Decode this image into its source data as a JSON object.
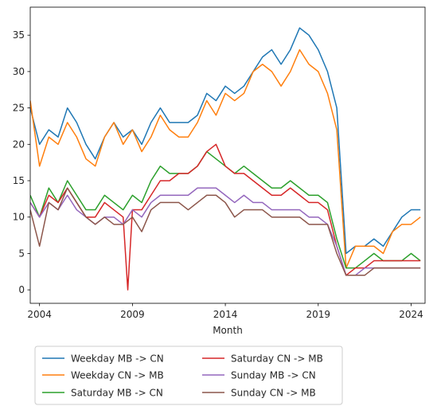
{
  "chart_data": {
    "type": "line",
    "title": "",
    "xlabel": "Month",
    "ylabel": "",
    "xlim": [
      2003.5,
      2024.75
    ],
    "ylim": [
      -1.85,
      38.85
    ],
    "xticks": [
      2004,
      2009,
      2014,
      2019,
      2024
    ],
    "xtick_labels": [
      "2004",
      "2009",
      "2014",
      "2019",
      "2024"
    ],
    "yticks": [
      0,
      5,
      10,
      15,
      20,
      25,
      30,
      35
    ],
    "ytick_labels": [
      "0",
      "5",
      "10",
      "15",
      "20",
      "25",
      "30",
      "35"
    ],
    "grid": false,
    "legend_position": "below-left",
    "legend_columns": 2,
    "series": [
      {
        "name": "Weekday MB -> CN",
        "color": "#1f77b4",
        "x": [
          2003.5,
          2004.0,
          2004.5,
          2005.0,
          2005.5,
          2006.0,
          2006.5,
          2007.0,
          2007.5,
          2008.0,
          2008.5,
          2009.0,
          2009.5,
          2010.0,
          2010.5,
          2011.0,
          2011.5,
          2012.0,
          2012.5,
          2013.0,
          2013.5,
          2014.0,
          2014.5,
          2015.0,
          2015.5,
          2016.0,
          2016.5,
          2017.0,
          2017.5,
          2018.0,
          2018.5,
          2019.0,
          2019.5,
          2020.0,
          2020.5,
          2021.0,
          2021.5,
          2022.0,
          2022.5,
          2023.0,
          2023.5,
          2024.0,
          2024.5
        ],
        "y": [
          25,
          20,
          22,
          21,
          25,
          23,
          20,
          18,
          21,
          23,
          21,
          22,
          20,
          23,
          25,
          23,
          23,
          23,
          24,
          27,
          26,
          28,
          27,
          28,
          30,
          32,
          33,
          31,
          33,
          36,
          35,
          33,
          30,
          25,
          5,
          6,
          6,
          7,
          6,
          8,
          10,
          11,
          11
        ]
      },
      {
        "name": "Weekday CN -> MB",
        "color": "#ff7f0e",
        "x": [
          2003.5,
          2004.0,
          2004.5,
          2005.0,
          2005.5,
          2006.0,
          2006.5,
          2007.0,
          2007.5,
          2008.0,
          2008.5,
          2009.0,
          2009.5,
          2010.0,
          2010.5,
          2011.0,
          2011.5,
          2012.0,
          2012.5,
          2013.0,
          2013.5,
          2014.0,
          2014.5,
          2015.0,
          2015.5,
          2016.0,
          2016.5,
          2017.0,
          2017.5,
          2018.0,
          2018.5,
          2019.0,
          2019.5,
          2020.0,
          2020.5,
          2021.0,
          2021.5,
          2022.0,
          2022.5,
          2023.0,
          2023.5,
          2024.0,
          2024.5
        ],
        "y": [
          26,
          17,
          21,
          20,
          23,
          21,
          18,
          17,
          21,
          23,
          20,
          22,
          19,
          21,
          24,
          22,
          21,
          21,
          23,
          26,
          24,
          27,
          26,
          27,
          30,
          31,
          30,
          28,
          30,
          33,
          31,
          30,
          27,
          22,
          3,
          6,
          6,
          6,
          5,
          8,
          9,
          9,
          10
        ]
      },
      {
        "name": "Saturday MB -> CN",
        "color": "#2ca02c",
        "x": [
          2003.5,
          2004.0,
          2004.5,
          2005.0,
          2005.5,
          2006.0,
          2006.5,
          2007.0,
          2007.5,
          2008.0,
          2008.5,
          2009.0,
          2009.5,
          2010.0,
          2010.5,
          2011.0,
          2011.5,
          2012.0,
          2012.5,
          2013.0,
          2013.5,
          2014.0,
          2014.5,
          2015.0,
          2015.5,
          2016.0,
          2016.5,
          2017.0,
          2017.5,
          2018.0,
          2018.5,
          2019.0,
          2019.5,
          2020.0,
          2020.5,
          2021.0,
          2021.5,
          2022.0,
          2022.5,
          2023.0,
          2023.5,
          2024.0,
          2024.5
        ],
        "y": [
          13,
          10,
          14,
          12,
          15,
          13,
          11,
          11,
          13,
          12,
          11,
          13,
          12,
          15,
          17,
          16,
          16,
          16,
          17,
          19,
          18,
          17,
          16,
          17,
          16,
          15,
          14,
          14,
          15,
          14,
          13,
          13,
          12,
          7,
          3,
          3,
          4,
          5,
          4,
          4,
          4,
          5,
          4
        ]
      },
      {
        "name": "Saturday CN -> MB",
        "color": "#d62728",
        "x": [
          2003.5,
          2004.0,
          2004.5,
          2005.0,
          2005.5,
          2006.0,
          2006.5,
          2007.0,
          2007.5,
          2008.0,
          2008.5,
          2008.75,
          2009.0,
          2009.5,
          2010.0,
          2010.5,
          2011.0,
          2011.5,
          2012.0,
          2012.5,
          2013.0,
          2013.5,
          2014.0,
          2014.5,
          2015.0,
          2015.5,
          2016.0,
          2016.5,
          2017.0,
          2017.5,
          2018.0,
          2018.5,
          2019.0,
          2019.5,
          2020.0,
          2020.5,
          2021.0,
          2021.5,
          2022.0,
          2022.5,
          2023.0,
          2023.5,
          2024.0,
          2024.5
        ],
        "y": [
          12,
          10,
          13,
          12,
          14,
          12,
          10,
          10,
          12,
          11,
          10,
          0,
          11,
          11,
          13,
          15,
          15,
          16,
          16,
          17,
          19,
          20,
          17,
          16,
          16,
          15,
          14,
          13,
          13,
          14,
          13,
          12,
          12,
          11,
          6,
          2,
          3,
          3,
          4,
          4,
          4,
          4,
          4,
          4
        ]
      },
      {
        "name": "Sunday MB -> CN",
        "color": "#9467bd",
        "x": [
          2003.5,
          2004.0,
          2004.5,
          2005.0,
          2005.5,
          2006.0,
          2006.5,
          2007.0,
          2007.5,
          2008.0,
          2008.5,
          2009.0,
          2009.5,
          2010.0,
          2010.5,
          2011.0,
          2011.5,
          2012.0,
          2012.5,
          2013.0,
          2013.5,
          2014.0,
          2014.5,
          2015.0,
          2015.5,
          2016.0,
          2016.5,
          2017.0,
          2017.5,
          2018.0,
          2018.5,
          2019.0,
          2019.5,
          2020.0,
          2020.5,
          2021.0,
          2021.5,
          2022.0,
          2022.5,
          2023.0,
          2023.5,
          2024.0,
          2024.5
        ],
        "y": [
          12,
          10,
          12,
          11,
          13,
          11,
          10,
          9,
          10,
          10,
          9,
          11,
          10,
          12,
          13,
          13,
          13,
          13,
          14,
          14,
          14,
          13,
          12,
          13,
          12,
          12,
          11,
          11,
          11,
          11,
          10,
          10,
          9,
          6,
          2,
          2,
          3,
          3,
          3,
          3,
          3,
          3,
          3
        ]
      },
      {
        "name": "Sunday CN -> MB",
        "color": "#8c564b",
        "x": [
          2003.5,
          2004.0,
          2004.5,
          2005.0,
          2005.5,
          2006.0,
          2006.5,
          2007.0,
          2007.5,
          2008.0,
          2008.5,
          2009.0,
          2009.5,
          2010.0,
          2010.5,
          2011.0,
          2011.5,
          2012.0,
          2012.5,
          2013.0,
          2013.5,
          2014.0,
          2014.5,
          2015.0,
          2015.5,
          2016.0,
          2016.5,
          2017.0,
          2017.5,
          2018.0,
          2018.5,
          2019.0,
          2019.5,
          2020.0,
          2020.5,
          2021.0,
          2021.5,
          2022.0,
          2022.5,
          2023.0,
          2023.5,
          2024.0,
          2024.5
        ],
        "y": [
          11,
          6,
          12,
          11,
          14,
          12,
          10,
          9,
          10,
          9,
          9,
          10,
          8,
          11,
          12,
          12,
          12,
          11,
          12,
          13,
          13,
          12,
          10,
          11,
          11,
          11,
          10,
          10,
          10,
          10,
          9,
          9,
          9,
          5,
          2,
          2,
          2,
          3,
          3,
          3,
          3,
          3,
          3
        ]
      }
    ]
  }
}
